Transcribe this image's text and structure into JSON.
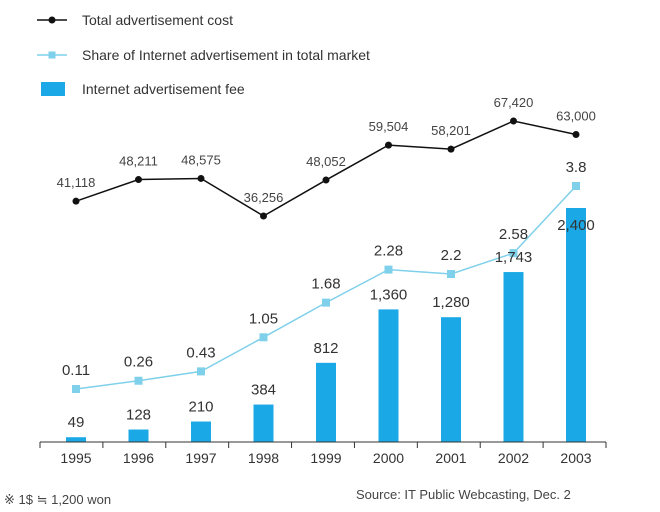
{
  "colors": {
    "total": "#111111",
    "share": "#7fd0ea",
    "fee": "#1aa9e6",
    "axis": "#333333"
  },
  "chart_data": {
    "type": "bar",
    "categories": [
      "1995",
      "1996",
      "1997",
      "1998",
      "1999",
      "2000",
      "2001",
      "2002",
      "2003"
    ],
    "series": [
      {
        "name": "Total advertisement cost",
        "type": "line",
        "values": [
          41118,
          48211,
          48575,
          36256,
          48052,
          59504,
          58201,
          67420,
          63000
        ],
        "labels": [
          "41,118",
          "48,211",
          "48,575",
          "36,256",
          "48,052",
          "59,504",
          "58,201",
          "67,420",
          "63,000"
        ]
      },
      {
        "name": "Share of Internet advertisement in total market",
        "type": "line",
        "values": [
          0.11,
          0.26,
          0.43,
          1.05,
          1.68,
          2.28,
          2.2,
          2.58,
          3.8
        ],
        "labels": [
          "0.11",
          "0.26",
          "0.43",
          "1.05",
          "1.68",
          "2.28",
          "2.2",
          "2.58",
          "3.8"
        ]
      },
      {
        "name": "Internet advertisement fee",
        "type": "bar",
        "values": [
          49,
          128,
          210,
          384,
          812,
          1360,
          1280,
          1743,
          2400
        ],
        "labels": [
          "49",
          "128",
          "210",
          "384",
          "812",
          "1,360",
          "1,280",
          "1,743",
          "2,400"
        ]
      }
    ]
  },
  "footnote": "※ 1$ ≒ 1,200 won",
  "source": "Source: IT Public Webcasting, Dec. 2"
}
